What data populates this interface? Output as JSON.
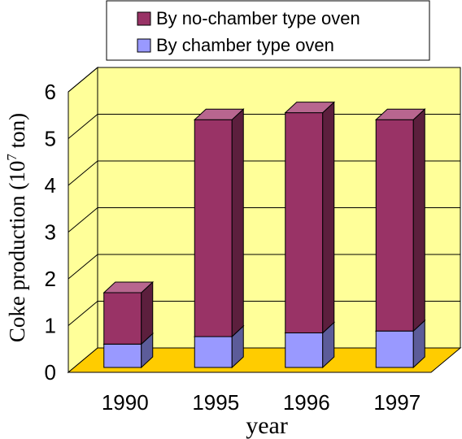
{
  "chart_data": {
    "type": "bar",
    "stacked": true,
    "three_d": true,
    "categories": [
      "1990",
      "1995",
      "1996",
      "1997"
    ],
    "series": [
      {
        "name": "By chamber type oven",
        "values": [
          0.5,
          0.66,
          0.74,
          0.78
        ]
      },
      {
        "name": "By no-chamber type oven",
        "values": [
          1.1,
          4.64,
          4.71,
          4.52
        ]
      }
    ],
    "xlabel": "year",
    "ylabel": {
      "prefix": "Coke production (10",
      "superscript": "7",
      "suffix": " ton)"
    },
    "ylim": [
      0,
      6
    ],
    "yticks": [
      "0",
      "1",
      "2",
      "3",
      "4",
      "5",
      "6"
    ],
    "grid": true,
    "legend_position": "top",
    "legend_order": [
      1,
      0
    ],
    "colors": {
      "chamber_front": "#9999ff",
      "chamber_side": "#5c5c99",
      "chamber_top": "#b8b8ff",
      "no_chamber_front": "#993366",
      "no_chamber_side": "#5c1f3d",
      "no_chamber_top": "#b8668f",
      "back_wall": "#ffff99",
      "side_wall": "#ffff99",
      "floor": "#ffcc00",
      "grid": "#000000"
    }
  }
}
